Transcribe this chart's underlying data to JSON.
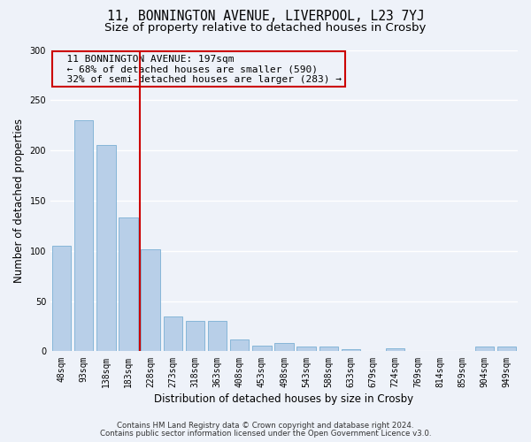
{
  "title": "11, BONNINGTON AVENUE, LIVERPOOL, L23 7YJ",
  "subtitle": "Size of property relative to detached houses in Crosby",
  "xlabel": "Distribution of detached houses by size in Crosby",
  "ylabel": "Number of detached properties",
  "footer_line1": "Contains HM Land Registry data © Crown copyright and database right 2024.",
  "footer_line2": "Contains public sector information licensed under the Open Government Licence v3.0.",
  "bin_labels": [
    "48sqm",
    "93sqm",
    "138sqm",
    "183sqm",
    "228sqm",
    "273sqm",
    "318sqm",
    "363sqm",
    "408sqm",
    "453sqm",
    "498sqm",
    "543sqm",
    "588sqm",
    "633sqm",
    "679sqm",
    "724sqm",
    "769sqm",
    "814sqm",
    "859sqm",
    "904sqm",
    "949sqm"
  ],
  "bar_values": [
    105,
    230,
    205,
    133,
    102,
    35,
    30,
    30,
    12,
    6,
    8,
    5,
    5,
    2,
    0,
    3,
    0,
    0,
    0,
    5,
    5
  ],
  "bar_color": "#b8cfe8",
  "bar_edgecolor": "#7aafd4",
  "vline_x": 3.5,
  "vline_color": "#cc0000",
  "annotation_text": "  11 BONNINGTON AVENUE: 197sqm\n  ← 68% of detached houses are smaller (590)\n  32% of semi-detached houses are larger (283) →",
  "annotation_box_edgecolor": "#cc0000",
  "ylim": [
    0,
    300
  ],
  "yticks": [
    0,
    50,
    100,
    150,
    200,
    250,
    300
  ],
  "background_color": "#eef2f9",
  "grid_color": "#ffffff",
  "title_fontsize": 10.5,
  "subtitle_fontsize": 9.5,
  "axis_label_fontsize": 8.5,
  "tick_fontsize": 7.0,
  "annotation_fontsize": 8.0,
  "footer_fontsize": 6.2
}
